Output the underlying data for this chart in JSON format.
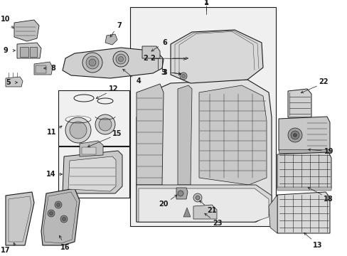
{
  "bg_color": "#ffffff",
  "line_color": "#1a1a1a",
  "fill_light": "#e8e8e8",
  "fill_mid": "#d0d0d0",
  "fill_dark": "#b0b0b0",
  "box_fill": "#ebebeb"
}
